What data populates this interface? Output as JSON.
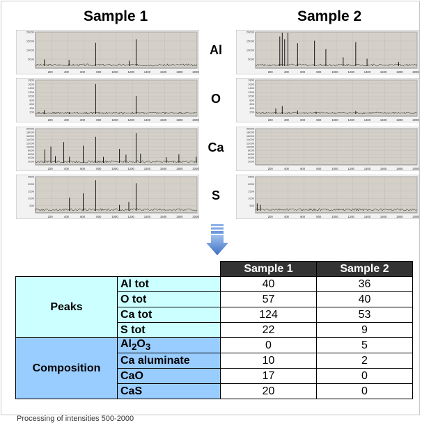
{
  "titles": {
    "sample1": "Sample 1",
    "sample2": "Sample 2"
  },
  "elements": [
    "Al",
    "O",
    "Ca",
    "S"
  ],
  "spectra": [
    {
      "element": "Al",
      "yticks": [
        "20000",
        "15000",
        "10000",
        "5000"
      ],
      "ymax": 20000,
      "xticks": [
        "200",
        "400",
        "600",
        "800",
        "1000",
        "1200",
        "1400",
        "1600",
        "1800",
        "2000"
      ],
      "sample1_peaks": [
        [
          110,
          4800
        ],
        [
          415,
          4500
        ],
        [
          745,
          14000
        ],
        [
          1245,
          16000
        ],
        [
          1160,
          4200
        ]
      ],
      "sample2_peaks": [
        [
          300,
          17500
        ],
        [
          330,
          21000
        ],
        [
          360,
          16000
        ],
        [
          400,
          20500
        ],
        [
          520,
          13800
        ],
        [
          730,
          15200
        ],
        [
          870,
          10500
        ],
        [
          1240,
          14400
        ],
        [
          1085,
          6000
        ],
        [
          1380,
          5200
        ],
        [
          1770,
          3500
        ]
      ]
    },
    {
      "element": "O",
      "yticks": [
        "1800",
        "1600",
        "1400",
        "1200",
        "1000",
        "800",
        "600",
        "400",
        "200"
      ],
      "ymax": 1800,
      "xticks": [
        "200",
        "400",
        "600",
        "800",
        "1000",
        "1200",
        "1400",
        "1600",
        "1800",
        "2000"
      ],
      "sample1_peaks": [
        [
          745,
          1600
        ],
        [
          1245,
          1000
        ],
        [
          110,
          300
        ],
        [
          420,
          200
        ]
      ],
      "sample2_peaks": [
        [
          250,
          380
        ],
        [
          330,
          500
        ],
        [
          520,
          280
        ],
        [
          750,
          220
        ],
        [
          1240,
          260
        ]
      ]
    },
    {
      "element": "Ca",
      "yticks": [
        "20000",
        "18000",
        "16000",
        "14000",
        "12000",
        "10000",
        "8000",
        "6000",
        "4000",
        "2000"
      ],
      "ymax": 20000,
      "xticks": [
        "200",
        "400",
        "600",
        "800",
        "1000",
        "1200",
        "1400",
        "1600",
        "1800",
        "2000"
      ],
      "sample1_peaks": [
        [
          115,
          8500
        ],
        [
          190,
          10200
        ],
        [
          245,
          4800
        ],
        [
          350,
          12600
        ],
        [
          420,
          4500
        ],
        [
          590,
          10600
        ],
        [
          745,
          15500
        ],
        [
          840,
          4400
        ],
        [
          1040,
          8800
        ],
        [
          1120,
          5600
        ],
        [
          1245,
          17600
        ],
        [
          1300,
          6200
        ],
        [
          1620,
          4200
        ],
        [
          1775,
          5800
        ],
        [
          1990,
          4500
        ]
      ],
      "sample2_peaks": []
    },
    {
      "element": "S",
      "yticks": [
        "2500",
        "2000",
        "1500",
        "1000",
        "500"
      ],
      "ymax": 2500,
      "xticks": [
        "200",
        "400",
        "600",
        "800",
        "1000",
        "1200",
        "1400",
        "1600",
        "1800",
        "2000"
      ],
      "sample1_peaks": [
        [
          420,
          1050
        ],
        [
          590,
          1350
        ],
        [
          745,
          2250
        ],
        [
          1040,
          550
        ],
        [
          1245,
          2050
        ],
        [
          1155,
          750
        ]
      ],
      "sample2_peaks": [
        [
          20,
          650
        ],
        [
          60,
          550
        ]
      ]
    }
  ],
  "table": {
    "headers": [
      "Sample 1",
      "Sample 2"
    ],
    "groups": [
      {
        "name": "Peaks",
        "class": "peaks",
        "rows": [
          {
            "label": "Al tot",
            "v1": "40",
            "v2": "36"
          },
          {
            "label": "O tot",
            "v1": "57",
            "v2": "40"
          },
          {
            "label": "Ca tot",
            "v1": "124",
            "v2": "53"
          },
          {
            "label": "S tot",
            "v1": "22",
            "v2": "9"
          }
        ]
      },
      {
        "name": "Composition",
        "class": "comp",
        "rows": [
          {
            "label": "Al2O3",
            "html": "Al<sub>2</sub>O<sub>3</sub>",
            "v1": "0",
            "v2": "5"
          },
          {
            "label": "Ca aluminate",
            "v1": "10",
            "v2": "2"
          },
          {
            "label": "CaO",
            "v1": "17",
            "v2": "0"
          },
          {
            "label": "CaS",
            "v1": "20",
            "v2": "0"
          }
        ]
      }
    ]
  },
  "footnote": "Processing of intensities 500-2000",
  "colors": {
    "plot_bg": "#d4d0c8",
    "grid": "#bdbdbd",
    "peaks_fill": "#ccffff",
    "composition_fill": "#99ccff",
    "header_fill": "#333333",
    "arrow": "#4a7fcf"
  }
}
